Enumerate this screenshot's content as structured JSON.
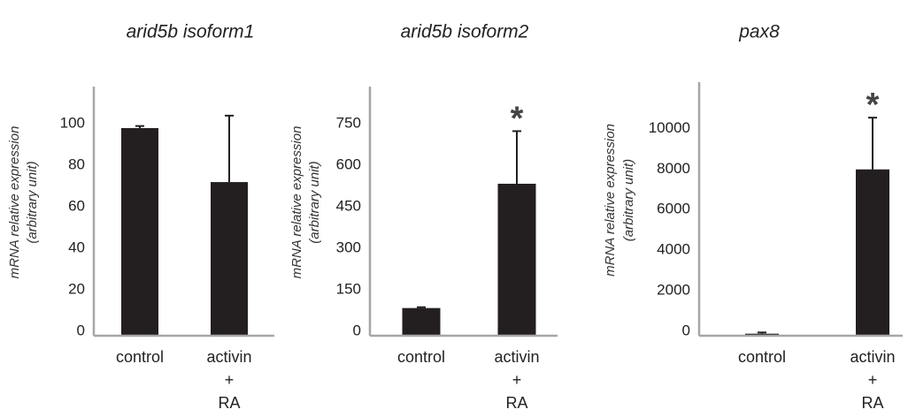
{
  "chart_data": [
    {
      "type": "bar",
      "title": "arid5b isoform1",
      "y_label": [
        "mRNA relative expression",
        "(arbitrary unit)"
      ],
      "categories": [
        "control",
        "activin + RA"
      ],
      "values": [
        100,
        74
      ],
      "errors": [
        1,
        32
      ],
      "annotations": [
        null,
        null
      ],
      "color": "#231f20",
      "ylim": [
        0,
        120
      ],
      "yticks": [
        0,
        20,
        40,
        60,
        80,
        100
      ]
    },
    {
      "type": "bar",
      "title": "arid5b isoform2",
      "y_label": [
        "mRNA relative expression",
        "(arbitrary unit)"
      ],
      "categories": [
        "control",
        "activin + RA"
      ],
      "values": [
        100,
        549
      ],
      "errors": [
        3,
        190
      ],
      "annotations": [
        null,
        "*"
      ],
      "color": "#231f20",
      "ylim": [
        0,
        900
      ],
      "yticks": [
        0,
        150,
        300,
        450,
        600,
        750
      ]
    },
    {
      "type": "bar",
      "title": "pax8",
      "y_label": [
        "mRNA relative expression",
        "(arbitrary unit)"
      ],
      "categories": [
        "control",
        "activin + RA"
      ],
      "values": [
        100,
        8200
      ],
      "errors": [
        60,
        2550
      ],
      "annotations": [
        null,
        "*"
      ],
      "color": "#231f20",
      "ylim": [
        0,
        12500
      ],
      "yticks": [
        0,
        2000,
        4000,
        6000,
        8000,
        10000
      ]
    }
  ]
}
